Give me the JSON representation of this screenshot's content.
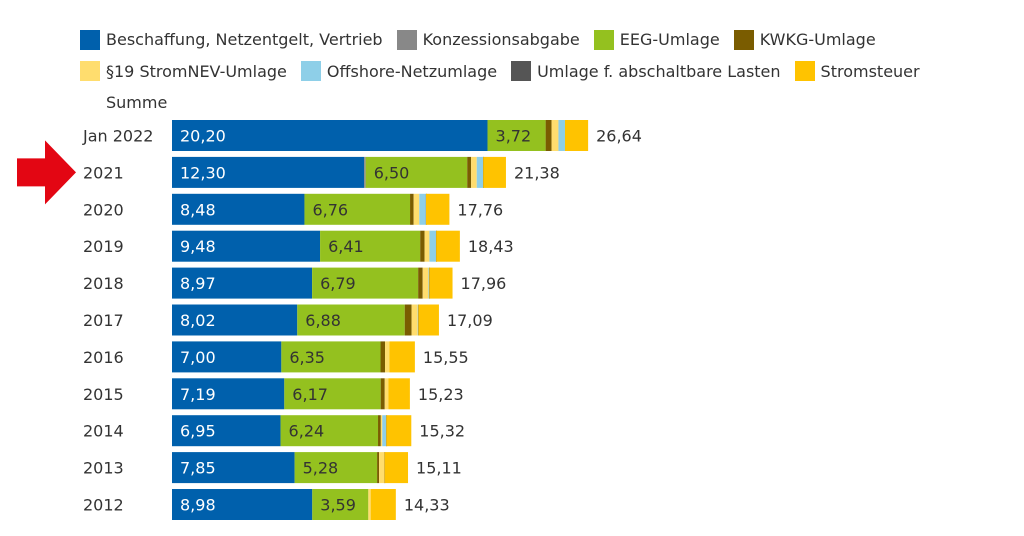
{
  "chart_data": {
    "type": "bar",
    "orientation": "horizontal",
    "stacked": true,
    "title": "",
    "xlabel": "",
    "ylabel": "",
    "legend_position": "top",
    "grid": false,
    "xlim": [
      0,
      27
    ],
    "annotation": {
      "type": "arrow",
      "color": "#e30613",
      "points_to": "2021"
    },
    "categories": [
      "Jan 2022",
      "2021",
      "2020",
      "2019",
      "2018",
      "2017",
      "2016",
      "2015",
      "2014",
      "2013",
      "2012"
    ],
    "series": [
      {
        "name": "Beschaffung, Netzentgelt, Vertrieb",
        "color": "#0060ac",
        "label_color": "#ffffff",
        "labeled": true,
        "values": [
          20.2,
          12.3,
          8.48,
          9.48,
          8.97,
          8.02,
          7.0,
          7.19,
          6.95,
          7.85,
          8.98
        ]
      },
      {
        "name": "Konzessionsabgabe",
        "color": "#888888",
        "labeled": false,
        "values": [
          0.0,
          0.1,
          0.0,
          0.0,
          0.0,
          0.0,
          0.0,
          0.0,
          0.0,
          0.0,
          0.0
        ]
      },
      {
        "name": "EEG-Umlage",
        "color": "#94c11f",
        "label_color": "#333333",
        "labeled": true,
        "values": [
          3.72,
          6.5,
          6.76,
          6.41,
          6.79,
          6.88,
          6.35,
          6.17,
          6.24,
          5.28,
          3.59
        ]
      },
      {
        "name": "KWKG-Umlage",
        "color": "#7a5c00",
        "labeled": false,
        "values": [
          0.38,
          0.25,
          0.23,
          0.28,
          0.29,
          0.44,
          0.29,
          0.26,
          0.18,
          0.13,
          0.0
        ]
      },
      {
        "name": "§19 StromNEV-Umlage",
        "color": "#ffdd6e",
        "labeled": false,
        "values": [
          0.44,
          0.36,
          0.36,
          0.31,
          0.37,
          0.39,
          0.28,
          0.24,
          0.09,
          0.33,
          0.15
        ]
      },
      {
        "name": "Offshore-Netzumlage",
        "color": "#8ecfe8",
        "labeled": false,
        "values": [
          0.42,
          0.4,
          0.42,
          0.42,
          0.04,
          0.03,
          0.0,
          0.0,
          0.25,
          0.0,
          0.0
        ]
      },
      {
        "name": "Umlage f. abschaltbare Lasten",
        "color": "#555555",
        "labeled": false,
        "values": [
          0.0,
          0.01,
          0.01,
          0.01,
          0.01,
          0.01,
          0.0,
          0.0,
          0.01,
          0.01,
          0.0
        ]
      },
      {
        "name": "Stromsteuer",
        "color": "#ffc300",
        "labeled": false,
        "values": [
          1.48,
          1.46,
          1.5,
          1.52,
          1.49,
          1.32,
          1.63,
          1.37,
          1.6,
          1.51,
          1.61
        ]
      }
    ],
    "totals": [
      26.64,
      21.38,
      17.76,
      18.43,
      17.96,
      17.09,
      15.55,
      15.23,
      15.32,
      15.11,
      14.33
    ],
    "label_texts": {
      "series0": [
        "20,20",
        "12,30",
        "8,48",
        "9,48",
        "8,97",
        "8,02",
        "7,00",
        "7,19",
        "6,95",
        "7,85",
        "8,98"
      ],
      "series2": [
        "3,72",
        "6,50",
        "6,76",
        "6,41",
        "6,79",
        "6,88",
        "6,35",
        "6,17",
        "6,24",
        "5,28",
        "3,59"
      ],
      "totals": [
        "26,64",
        "21,38",
        "17,76",
        "18,43",
        "17,96",
        "17,09",
        "15,55",
        "15,23",
        "15,32",
        "15,11",
        "14,33"
      ]
    },
    "legend": [
      {
        "label": "Beschaffung, Netzentgelt, Vertrieb",
        "color": "#0060ac"
      },
      {
        "label": "Konzessionsabgabe",
        "color": "#888888"
      },
      {
        "label": "EEG-Umlage",
        "color": "#94c11f"
      },
      {
        "label": "KWKG-Umlage",
        "color": "#7a5c00"
      },
      {
        "label": "§19 StromNEV-Umlage",
        "color": "#ffdd6e"
      },
      {
        "label": "Offshore-Netzumlage",
        "color": "#8ecfe8"
      },
      {
        "label": "Umlage f. abschaltbare Lasten",
        "color": "#555555"
      },
      {
        "label": "Stromsteuer",
        "color": "#ffc300"
      },
      {
        "label": "Summe",
        "color": null
      }
    ]
  }
}
